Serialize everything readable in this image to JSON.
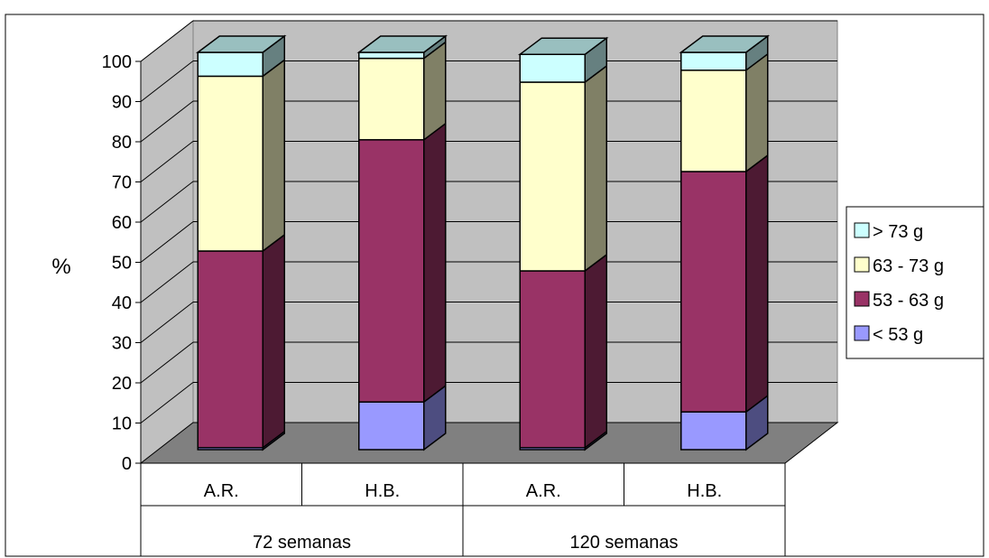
{
  "chart_data": {
    "type": "bar",
    "stacked": true,
    "three_d": true,
    "ylabel": "%",
    "ylim": [
      0,
      100
    ],
    "yticks": [
      0,
      10,
      20,
      30,
      40,
      50,
      60,
      70,
      80,
      90,
      100
    ],
    "categories": [
      "A.R.",
      "H.B.",
      "A.R.",
      "H.B."
    ],
    "groups": [
      {
        "label": "72 semanas",
        "span": 2
      },
      {
        "label": "120 semanas",
        "span": 2
      }
    ],
    "series": [
      {
        "name": "< 53 g",
        "values": [
          0.5,
          12,
          0.5,
          9.5
        ],
        "color": "#9999ff"
      },
      {
        "name": "53 - 63 g",
        "values": [
          49.5,
          66,
          44.5,
          60.5
        ],
        "color": "#993366"
      },
      {
        "name": "63 - 73 g",
        "values": [
          44,
          20.5,
          47.5,
          25.5
        ],
        "color": "#ffffcc"
      },
      {
        "name": "> 73 g",
        "values": [
          6,
          1.5,
          7,
          4.5
        ],
        "color": "#ccffff"
      }
    ],
    "legend_position": "right",
    "grid": true
  }
}
